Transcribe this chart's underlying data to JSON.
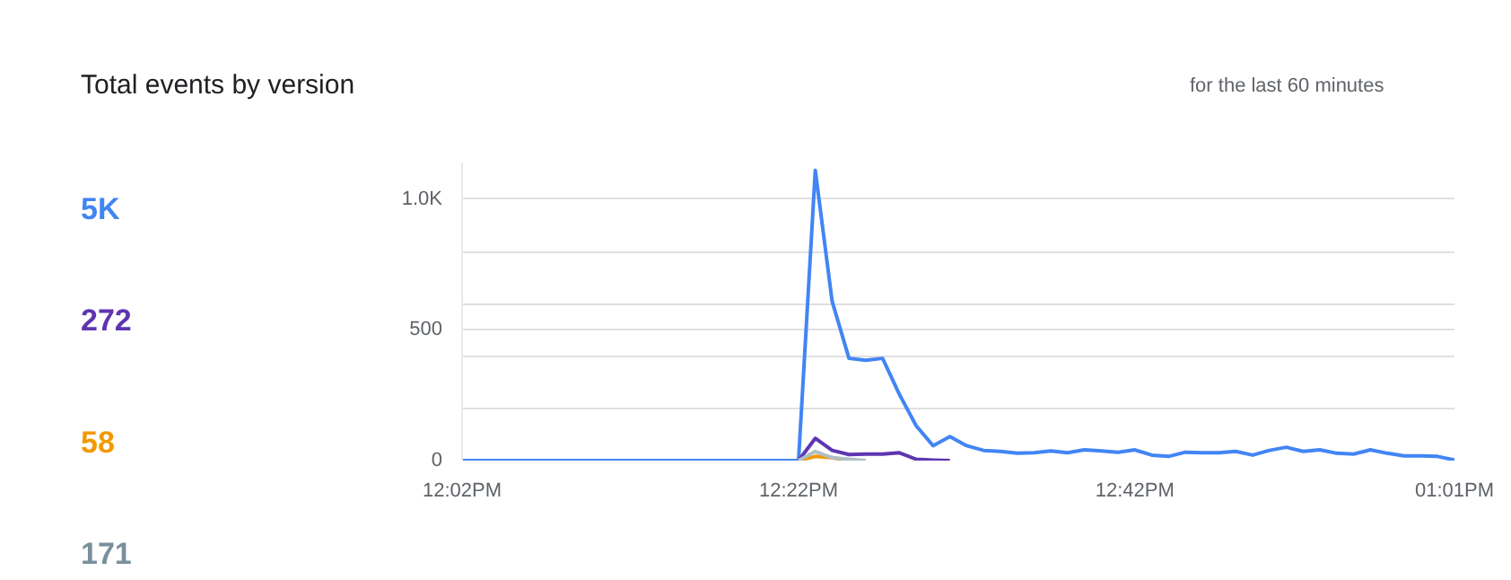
{
  "chart_data": {
    "type": "line",
    "title": "Total events by version",
    "subtitle": "for the last 60 minutes",
    "annotations": [
      "5K",
      "272",
      "58",
      "171"
    ],
    "x": [
      12.0333,
      12.05,
      12.0667,
      12.0833,
      12.1,
      12.1167,
      12.1333,
      12.15,
      12.1667,
      12.1833,
      12.2,
      12.2167,
      12.2333,
      12.25,
      12.2667,
      12.2833,
      12.3,
      12.3167,
      12.3333,
      12.35,
      12.3667,
      12.3833,
      12.4,
      12.4167,
      12.4333,
      12.45,
      12.4667,
      12.4833,
      12.5,
      12.5167,
      12.5333,
      12.55,
      12.5667,
      12.5833,
      12.6,
      12.6167,
      12.6333,
      12.65,
      12.6667,
      12.6833,
      12.7,
      12.7167,
      12.7333,
      12.75,
      12.7667,
      12.7833,
      12.8,
      12.8167,
      12.8333,
      12.85,
      12.8667,
      12.8833,
      12.9,
      12.9167,
      12.9333,
      12.95,
      12.9667,
      12.9833,
      13.0,
      13.0167
    ],
    "series": [
      {
        "color": "#4285f4",
        "values": [
          0,
          0,
          0,
          0,
          0,
          0,
          0,
          0,
          0,
          0,
          0,
          0,
          0,
          0,
          0,
          0,
          0,
          0,
          0,
          0,
          0,
          1110,
          609,
          391,
          384,
          391,
          253,
          133,
          57,
          92,
          57,
          39,
          35,
          28,
          30,
          37,
          30,
          41,
          37,
          32,
          41,
          21,
          16,
          32,
          30,
          30,
          35,
          21,
          39,
          51,
          35,
          41,
          28,
          25,
          41,
          28,
          18,
          18,
          16,
          2
        ]
      },
      {
        "color": "#5e35b1",
        "values": [
          null,
          null,
          null,
          null,
          null,
          null,
          null,
          null,
          null,
          null,
          null,
          null,
          null,
          null,
          null,
          null,
          null,
          null,
          null,
          null,
          0,
          85,
          39,
          23,
          25,
          25,
          30,
          5,
          2,
          0,
          null,
          null,
          null,
          null,
          null,
          null,
          null,
          null,
          null,
          null,
          null,
          null,
          null,
          null,
          null,
          null,
          null,
          null,
          null,
          null,
          null,
          null,
          null,
          null,
          null,
          null,
          null,
          null,
          null,
          null
        ]
      },
      {
        "color": "#f29900",
        "values": [
          null,
          null,
          null,
          null,
          null,
          null,
          null,
          null,
          null,
          null,
          null,
          null,
          null,
          null,
          null,
          null,
          null,
          null,
          null,
          null,
          0,
          16,
          11,
          0,
          null,
          null,
          null,
          null,
          null,
          null,
          null,
          null,
          null,
          null,
          null,
          null,
          null,
          null,
          null,
          null,
          null,
          null,
          null,
          null,
          null,
          null,
          null,
          null,
          null,
          null,
          null,
          null,
          null,
          null,
          null,
          null,
          null,
          null,
          null,
          null
        ]
      },
      {
        "color": "#b0bec5",
        "values": [
          null,
          null,
          null,
          null,
          null,
          null,
          null,
          null,
          null,
          null,
          null,
          null,
          null,
          null,
          null,
          null,
          null,
          null,
          null,
          null,
          0,
          35,
          11,
          5,
          0,
          null,
          null,
          null,
          null,
          null,
          null,
          null,
          null,
          null,
          null,
          null,
          null,
          null,
          null,
          null,
          null,
          null,
          null,
          null,
          null,
          null,
          null,
          null,
          null,
          null,
          null,
          null,
          null,
          null,
          null,
          null,
          null,
          null,
          null,
          null
        ]
      }
    ],
    "xlim": [
      12.0333,
      13.0167
    ],
    "xticks": [
      {
        "value": 12.0333,
        "label": "12:02PM"
      },
      {
        "value": 12.3667,
        "label": "12:22PM"
      },
      {
        "value": 12.7,
        "label": "12:42PM"
      },
      {
        "value": 13.0167,
        "label": "01:01PM"
      }
    ],
    "ylim": [
      0,
      1140
    ],
    "yticks": [
      0,
      {
        "value": 200,
        "label": null
      },
      {
        "value": 400,
        "label": null
      },
      500,
      {
        "value": 600,
        "label": null
      },
      {
        "value": 800,
        "label": null
      },
      {
        "value": 1000,
        "label": "1.0K"
      }
    ],
    "grid": "y",
    "marker": "none",
    "line_style": "solid"
  }
}
